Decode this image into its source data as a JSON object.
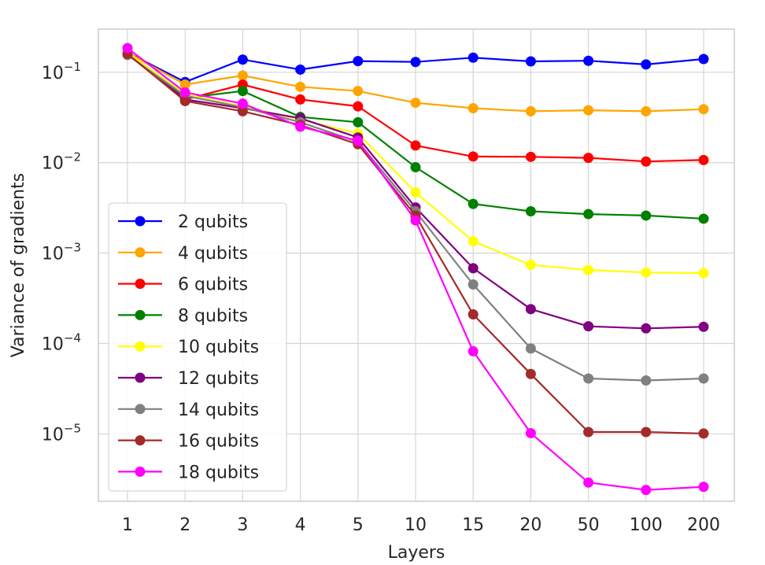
{
  "chart_data": {
    "type": "line",
    "xlabel": "Layers",
    "ylabel": "Variance of gradients",
    "yscale": "log",
    "ylim": [
      1.8e-06,
      0.3
    ],
    "grid": true,
    "legend_position": "bottom-left",
    "categories": [
      "1",
      "2",
      "3",
      "4",
      "5",
      "10",
      "15",
      "20",
      "50",
      "100",
      "200"
    ],
    "y_ticks": [
      {
        "value": 0.1,
        "base": "10",
        "exp": "−1"
      },
      {
        "value": 0.01,
        "base": "10",
        "exp": "−2"
      },
      {
        "value": 0.001,
        "base": "10",
        "exp": "−3"
      },
      {
        "value": 0.0001,
        "base": "10",
        "exp": "−4"
      },
      {
        "value": 1e-05,
        "base": "10",
        "exp": "−5"
      }
    ],
    "series": [
      {
        "name": "2 qubits",
        "color": "#0000ff",
        "values": [
          0.165,
          0.078,
          0.138,
          0.107,
          0.133,
          0.13,
          0.145,
          0.132,
          0.134,
          0.122,
          0.14
        ]
      },
      {
        "name": "4 qubits",
        "color": "#ffa500",
        "values": [
          0.165,
          0.073,
          0.092,
          0.069,
          0.062,
          0.046,
          0.04,
          0.037,
          0.038,
          0.037,
          0.039
        ]
      },
      {
        "name": "6 qubits",
        "color": "#ff0000",
        "values": [
          0.16,
          0.05,
          0.073,
          0.05,
          0.042,
          0.0155,
          0.0117,
          0.0116,
          0.0113,
          0.0103,
          0.0107
        ]
      },
      {
        "name": "8 qubits",
        "color": "#008000",
        "values": [
          0.158,
          0.052,
          0.062,
          0.032,
          0.028,
          0.0089,
          0.0035,
          0.0029,
          0.0027,
          0.0026,
          0.0024
        ]
      },
      {
        "name": "10 qubits",
        "color": "#ffff00",
        "values": [
          0.165,
          0.057,
          0.042,
          0.03,
          0.021,
          0.0047,
          0.00135,
          0.00074,
          0.00065,
          0.00061,
          0.0006
        ]
      },
      {
        "name": "12 qubits",
        "color": "#800080",
        "values": [
          0.158,
          0.05,
          0.04,
          0.031,
          0.019,
          0.0032,
          0.00068,
          0.00024,
          0.000155,
          0.000147,
          0.000153
        ]
      },
      {
        "name": "14 qubits",
        "color": "#808080",
        "values": [
          0.155,
          0.055,
          0.041,
          0.028,
          0.017,
          0.0029,
          0.00045,
          8.8e-05,
          4.1e-05,
          3.9e-05,
          4.1e-05
        ]
      },
      {
        "name": "16 qubits",
        "color": "#a52a2a",
        "values": [
          0.16,
          0.048,
          0.037,
          0.026,
          0.016,
          0.0026,
          0.00021,
          4.6e-05,
          1.05e-05,
          1.05e-05,
          1.01e-05
        ]
      },
      {
        "name": "18 qubits",
        "color": "#ff00ff",
        "values": [
          0.185,
          0.06,
          0.045,
          0.025,
          0.0175,
          0.0023,
          8.2e-05,
          1.02e-05,
          2.9e-06,
          2.4e-06,
          2.6e-06
        ]
      }
    ]
  }
}
